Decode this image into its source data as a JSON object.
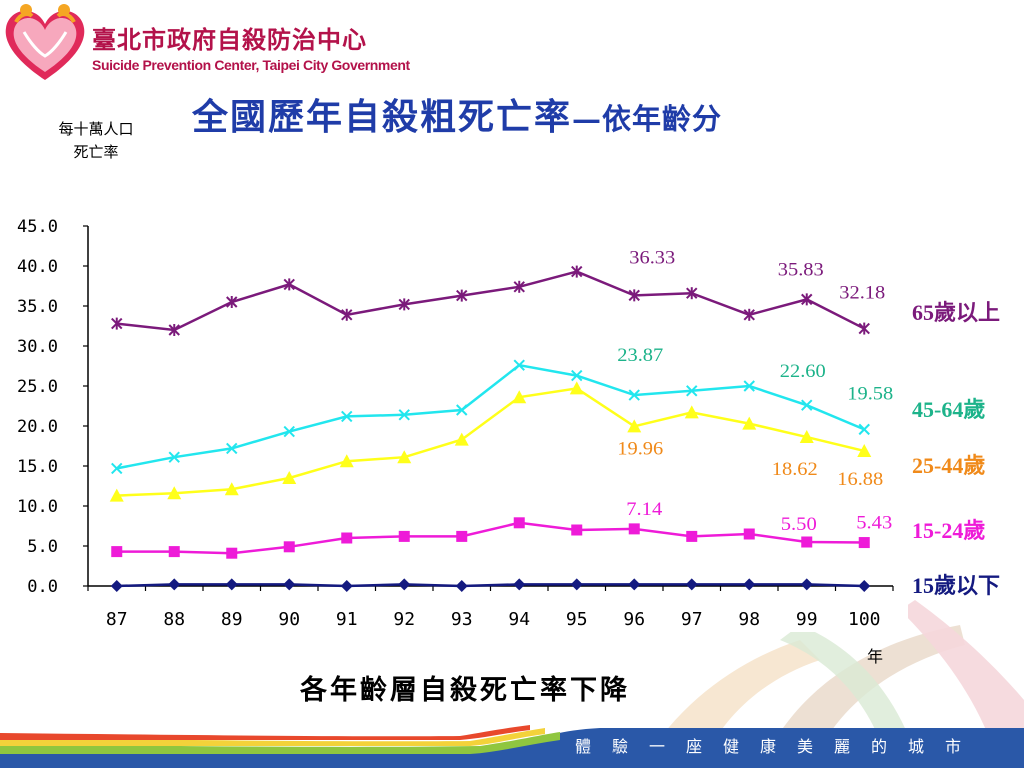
{
  "header": {
    "org_name_zh": "臺北市政府自殺防治中心",
    "org_name_en": "Suicide Prevention Center, Taipei City Government"
  },
  "title": {
    "main": "全國歷年自殺粗死亡率",
    "sub": "—依年齡分"
  },
  "unit_label": "每十萬人口\n死亡率",
  "conclusion": "各年齡層自殺死亡率下降",
  "footer": {
    "text": "體驗一座健康美麗的城市"
  },
  "colors": {
    "title": "#1f3ca8",
    "brand": "#b3124a",
    "footer_band": "#2a58a8"
  },
  "chart_data": {
    "type": "line",
    "xlabel": "年",
    "ylabel": "",
    "categories": [
      "87",
      "88",
      "89",
      "90",
      "91",
      "92",
      "93",
      "94",
      "95",
      "96",
      "97",
      "98",
      "99",
      "100"
    ],
    "y_ticks": [
      "45.0",
      "40.0",
      "35.0",
      "30.0",
      "25.0",
      "20.0",
      "15.0",
      "10.0",
      "5.0",
      "0.0"
    ],
    "ylim": [
      0,
      45
    ],
    "grid": false,
    "legend": "right, end-of-line labels",
    "series": [
      {
        "name": "65歲以上",
        "color": "#7b1a7b",
        "label_color": "#7b1a7b",
        "marker": "asterisk",
        "values": [
          32.8,
          32.0,
          35.5,
          37.7,
          33.9,
          35.2,
          36.3,
          37.4,
          39.3,
          36.33,
          36.6,
          33.9,
          35.83,
          32.18
        ],
        "annotations": [
          {
            "index": 9,
            "text": "36.33"
          },
          {
            "index": 12,
            "text": "35.83"
          },
          {
            "index": 13,
            "text": "32.18"
          }
        ]
      },
      {
        "name": "45-64歲",
        "color": "#22e6ee",
        "label_color": "#1db38a",
        "marker": "x",
        "values": [
          14.7,
          16.1,
          17.2,
          19.3,
          21.2,
          21.4,
          22.0,
          27.6,
          26.3,
          23.87,
          24.4,
          25.0,
          22.6,
          19.58
        ],
        "annotations": [
          {
            "index": 9,
            "text": "23.87"
          },
          {
            "index": 12,
            "text": "22.60"
          },
          {
            "index": 13,
            "text": "19.58"
          }
        ]
      },
      {
        "name": "25-44歲",
        "color": "#ffff1a",
        "label_color": "#f08a1a",
        "marker": "triangle",
        "values": [
          11.3,
          11.6,
          12.1,
          13.5,
          15.6,
          16.1,
          18.3,
          23.6,
          24.7,
          19.96,
          21.7,
          20.3,
          18.62,
          16.88
        ],
        "annotations": [
          {
            "index": 9,
            "text": "19.96"
          },
          {
            "index": 12,
            "text": "18.62"
          },
          {
            "index": 13,
            "text": "16.88"
          }
        ]
      },
      {
        "name": "15-24歲",
        "color": "#ee1bd8",
        "label_color": "#ee1bd8",
        "marker": "square",
        "values": [
          4.3,
          4.3,
          4.1,
          4.9,
          6.0,
          6.2,
          6.2,
          7.9,
          7.0,
          7.14,
          6.2,
          6.5,
          5.5,
          5.43
        ],
        "annotations": [
          {
            "index": 9,
            "text": "7.14"
          },
          {
            "index": 12,
            "text": "5.50"
          },
          {
            "index": 13,
            "text": "5.43"
          }
        ]
      },
      {
        "name": "15歲以下",
        "color": "#141a80",
        "label_color": "#141a80",
        "marker": "diamond",
        "values": [
          0.0,
          0.2,
          0.2,
          0.2,
          0.0,
          0.2,
          0.0,
          0.2,
          0.2,
          0.2,
          0.2,
          0.2,
          0.2,
          0.0
        ],
        "annotations": []
      }
    ]
  }
}
